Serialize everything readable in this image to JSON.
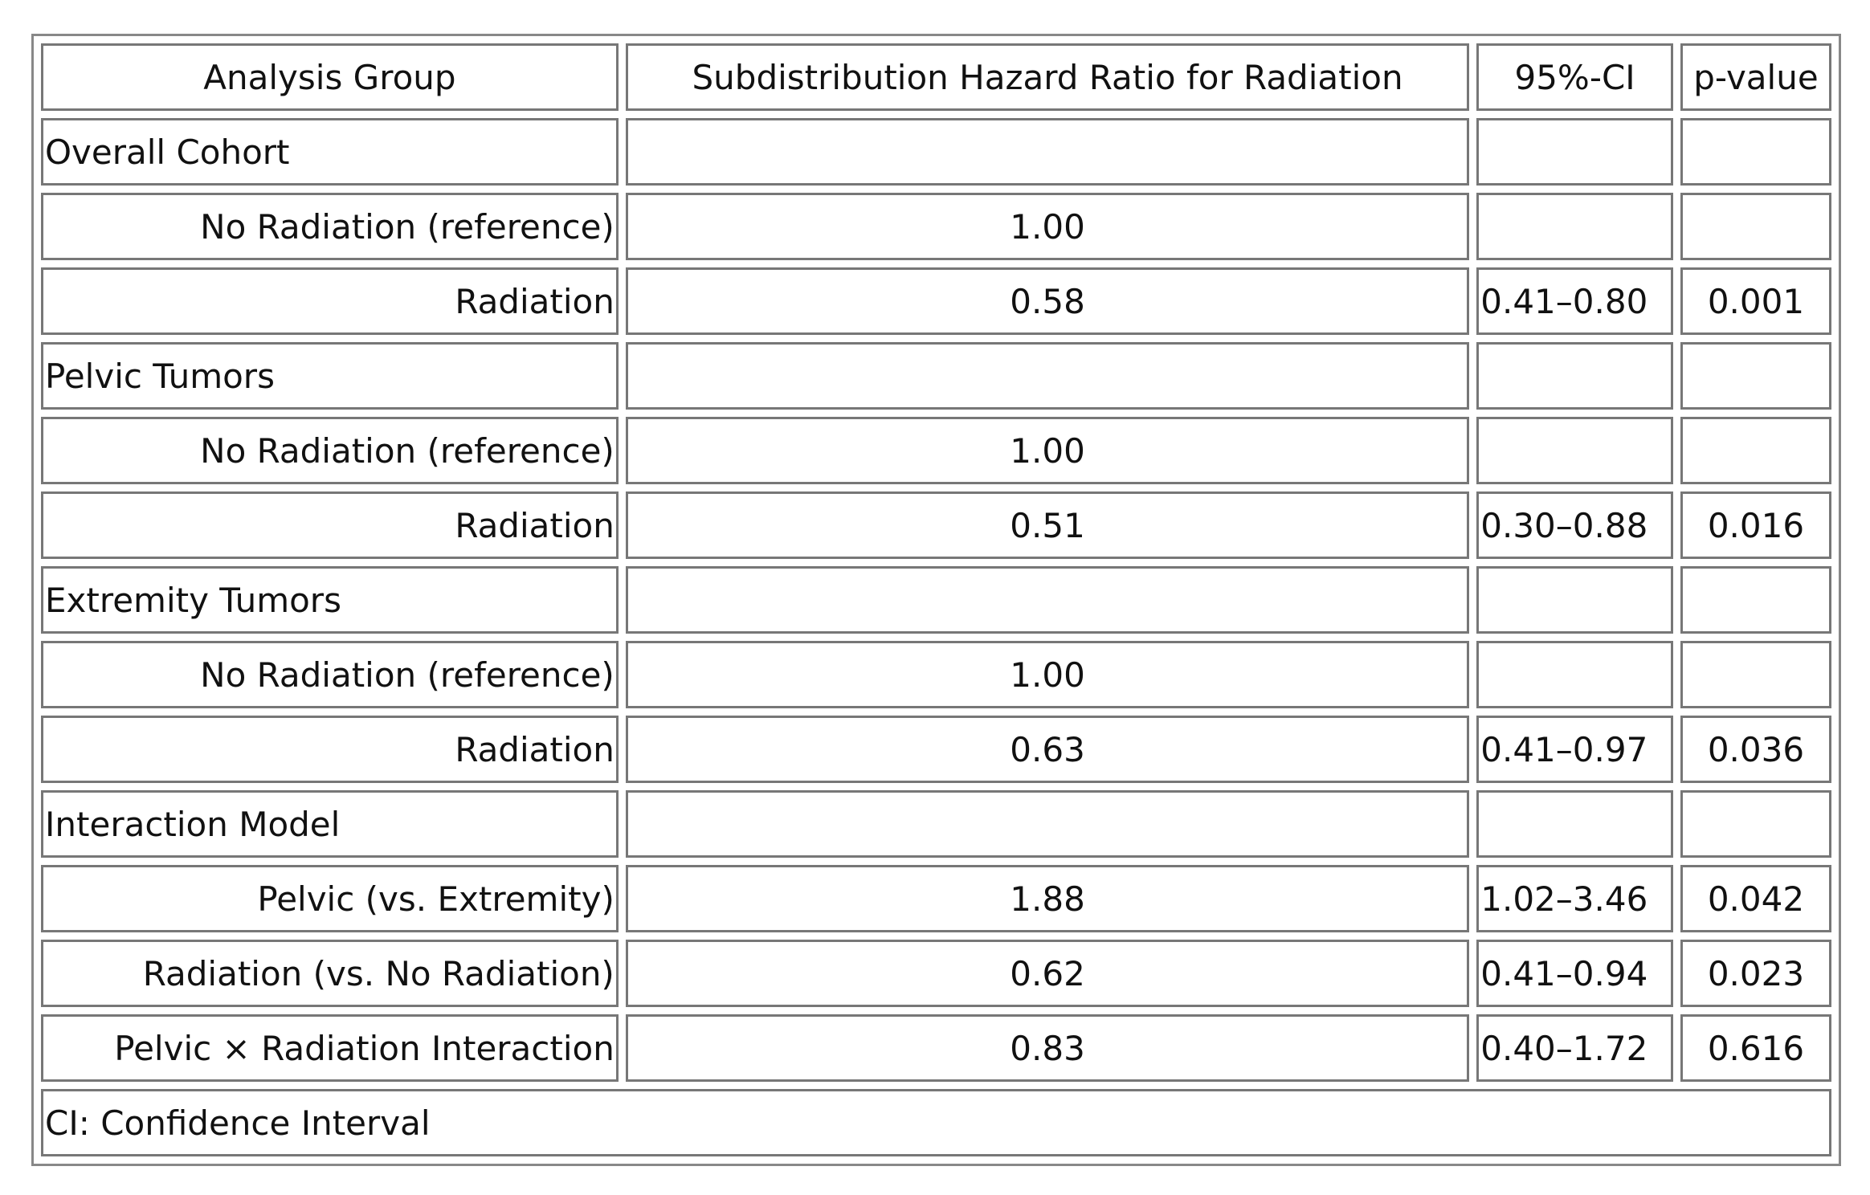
{
  "table": {
    "header": [
      "Analysis Group",
      "Subdistribution Hazard Ratio for Radiation",
      "95%-CI",
      "p-value"
    ],
    "rows": [
      [
        "Overall Cohort"
      ],
      [
        "No Radiation (reference)",
        "1.00"
      ],
      [
        "Radiation",
        "0.58",
        "0.41–0.80",
        "0.001"
      ],
      [
        "Pelvic Tumors"
      ],
      [
        "No Radiation (reference)",
        "1.00"
      ],
      [
        "Radiation",
        "0.51",
        "0.30–0.88",
        "0.016"
      ],
      [
        "Extremity Tumors"
      ],
      [
        "No Radiation (reference)",
        "1.00"
      ],
      [
        "Radiation",
        "0.63",
        "0.41–0.97",
        "0.036"
      ],
      [
        "Interaction Model"
      ],
      [
        "Pelvic (vs. Extremity)",
        "1.88",
        "1.02–3.46",
        "0.042"
      ],
      [
        "Radiation (vs. No Radiation)",
        "0.62",
        "0.41–0.94",
        "0.023"
      ],
      [
        "Pelvic × Radiation Interaction",
        "0.83",
        "0.40–1.72",
        "0.616"
      ]
    ],
    "footer": "CI: Confidence Interval"
  }
}
